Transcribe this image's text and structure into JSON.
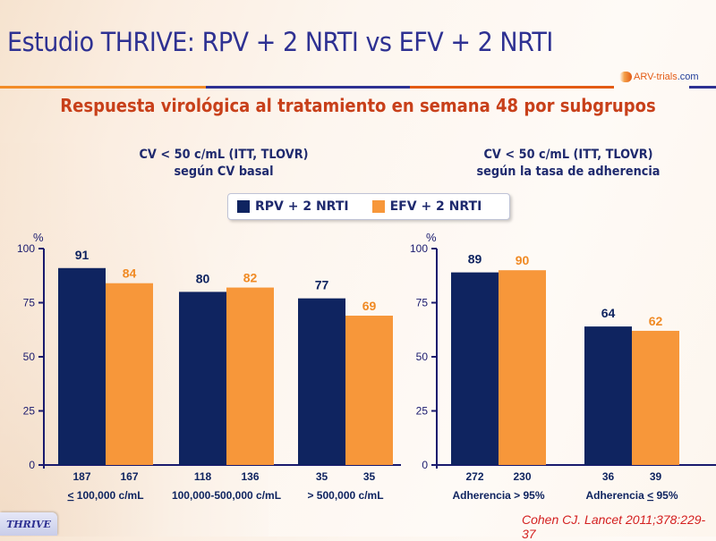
{
  "header": {
    "title": "Estudio THRIVE: RPV + 2 NRTI vs EFV + 2 NRTI",
    "subtitle": "Respuesta virológica al tratamiento en semana 48 por subgrupos",
    "logo_text_1": "ARV-trials",
    "logo_text_2": ".com",
    "rule_colors": [
      "#f28c28",
      "#2e3192",
      "#e35b14",
      "#2e3192"
    ]
  },
  "legend": {
    "items": [
      {
        "label": "RPV + 2 NRTI",
        "color": "#0f2460"
      },
      {
        "label": "EFV + 2 NRTI",
        "color": "#f7973a"
      }
    ]
  },
  "footer": {
    "badge": "THRIVE",
    "citation": "Cohen CJ. Lancet 2011;378:229-37"
  },
  "chart_data": [
    {
      "type": "bar",
      "title": "CV < 50 c/mL (ITT, TLOVR)",
      "subtitle": "según CV basal",
      "ylabel": "%",
      "ylim": [
        0,
        100
      ],
      "yticks": [
        0,
        25,
        50,
        75,
        100
      ],
      "grid": false,
      "categories": [
        "< 100,000 c/mL",
        "100,000-500,000 c/mL",
        "> 500,000 c/mL"
      ],
      "category_underline_first_char": [
        true,
        false,
        false
      ],
      "series": [
        {
          "name": "RPV + 2 NRTI",
          "color": "#0f2460",
          "values": [
            91,
            80,
            77
          ],
          "n": [
            187,
            118,
            35
          ]
        },
        {
          "name": "EFV + 2 NRTI",
          "color": "#f7973a",
          "values": [
            84,
            82,
            69
          ],
          "n": [
            167,
            136,
            35
          ]
        }
      ]
    },
    {
      "type": "bar",
      "title": "CV < 50 c/mL (ITT, TLOVR)",
      "subtitle": "según la tasa de adherencia",
      "ylabel": "%",
      "ylim": [
        0,
        100
      ],
      "yticks": [
        0,
        25,
        50,
        75,
        100
      ],
      "grid": false,
      "categories": [
        "Adherencia > 95%",
        "Adherencia < 95%"
      ],
      "category_underline_first_char": [
        false,
        true
      ],
      "series": [
        {
          "name": "RPV + 2 NRTI",
          "color": "#0f2460",
          "values": [
            89,
            64
          ],
          "n": [
            272,
            36
          ]
        },
        {
          "name": "EFV + 2 NRTI",
          "color": "#f7973a",
          "values": [
            90,
            62
          ],
          "n": [
            230,
            39
          ]
        }
      ]
    }
  ]
}
